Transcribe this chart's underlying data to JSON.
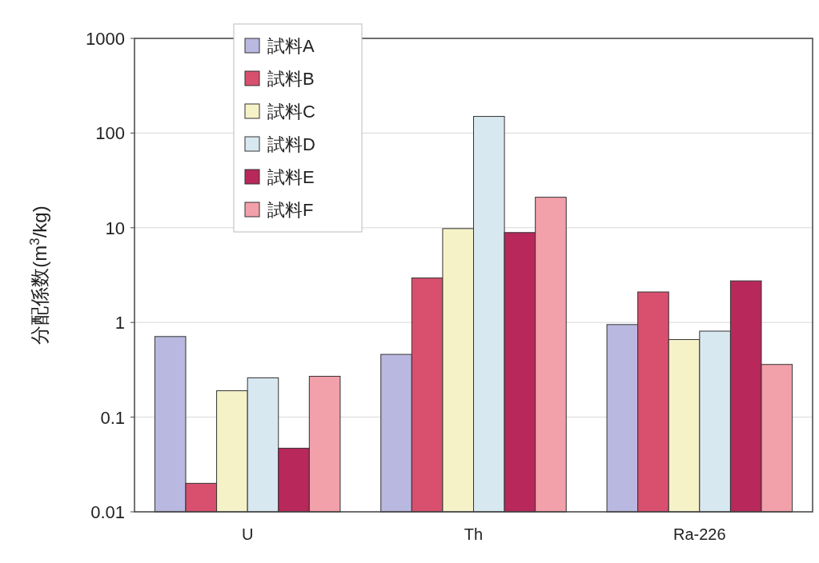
{
  "chart_data": {
    "type": "bar",
    "ylabel": "分配係数(m$^{3}$/kg)",
    "categories": [
      "U",
      "Th",
      "Ra-226"
    ],
    "series": [
      {
        "name": "試料A",
        "color": "#b8b8e0",
        "values": [
          0.71,
          0.46,
          0.95
        ]
      },
      {
        "name": "試料B",
        "color": "#d8506e",
        "values": [
          0.02,
          2.95,
          2.1
        ]
      },
      {
        "name": "試料C",
        "color": "#f5f2c8",
        "values": [
          0.19,
          9.8,
          0.66
        ]
      },
      {
        "name": "試料D",
        "color": "#d8e8f0",
        "values": [
          0.26,
          150,
          0.81
        ]
      },
      {
        "name": "試料E",
        "color": "#b8285a",
        "values": [
          0.047,
          8.9,
          2.75
        ]
      },
      {
        "name": "試料F",
        "color": "#f2a0aa",
        "values": [
          0.27,
          21,
          0.36
        ]
      }
    ],
    "log": true,
    "ylim": [
      0.01,
      1000
    ],
    "yticks": [
      0.01,
      0.1,
      1,
      10,
      100,
      1000
    ],
    "grid": "y",
    "legend": "top left"
  }
}
